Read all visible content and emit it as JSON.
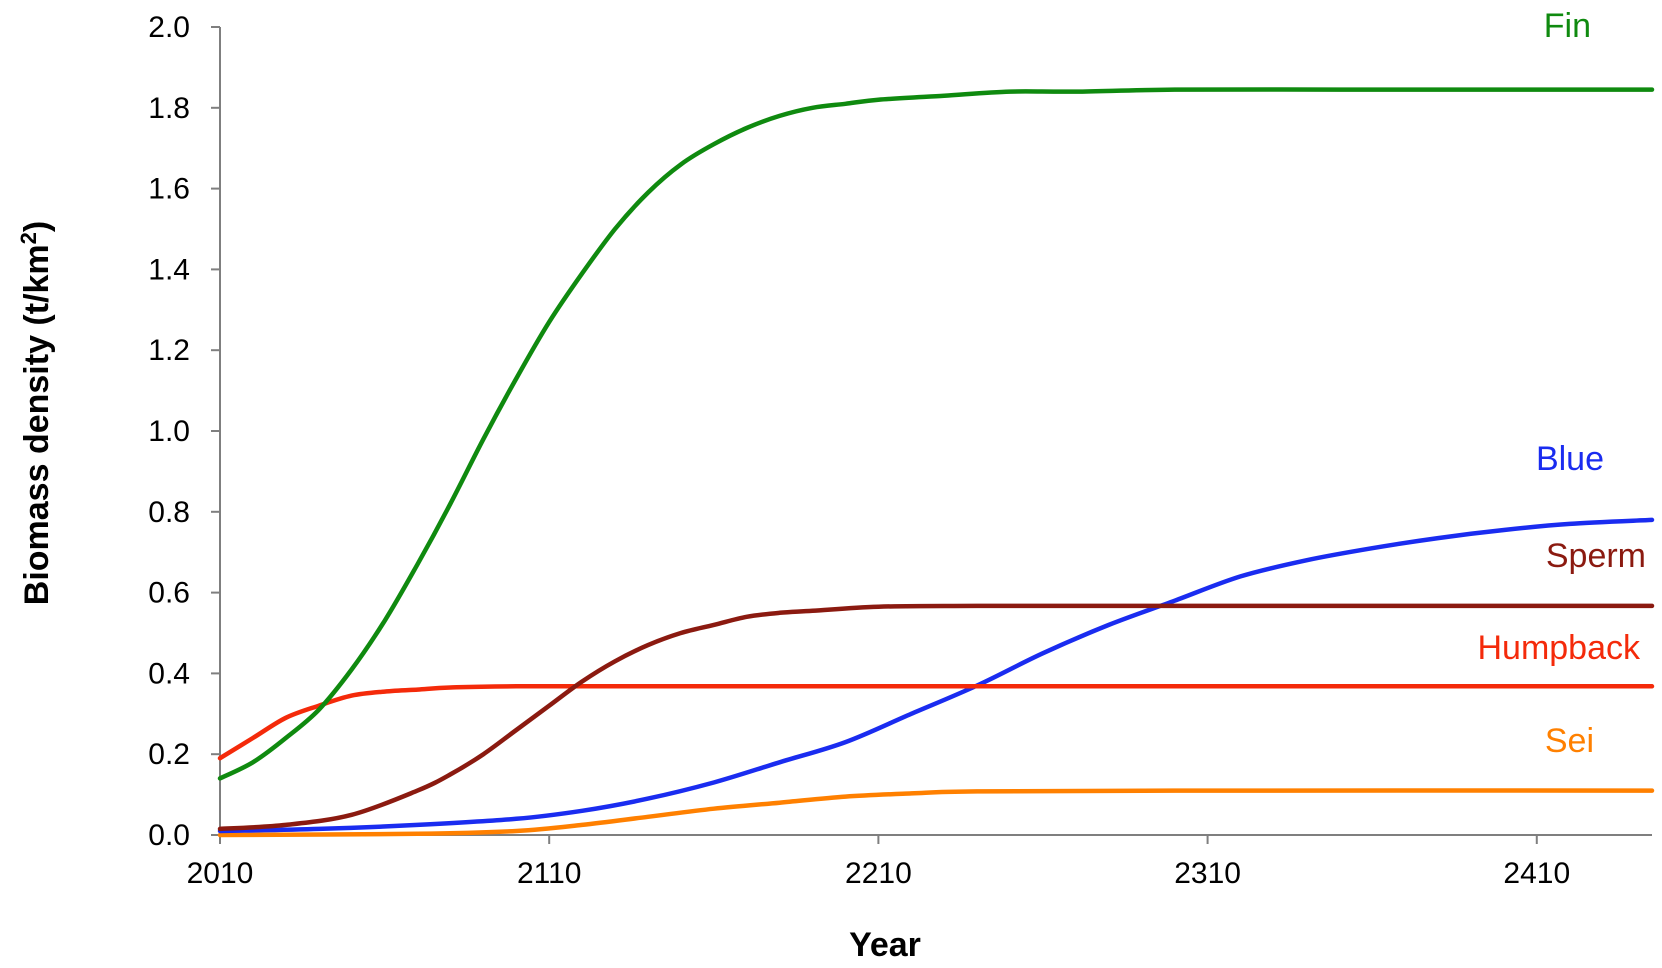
{
  "chart_data": {
    "type": "line",
    "xlabel": "Year",
    "ylabel": "Biomass density (t/km²)",
    "ylabel_main": "Biomass density (t/km",
    "ylabel_sup": "2",
    "ylabel_close": ")",
    "xlim": [
      2010,
      2445
    ],
    "ylim": [
      0,
      2.0
    ],
    "xticks": [
      "2010",
      "2110",
      "2210",
      "2310",
      "2410"
    ],
    "yticks": [
      "0.0",
      "0.2",
      "0.4",
      "0.6",
      "0.8",
      "1.0",
      "1.2",
      "1.4",
      "1.6",
      "1.8",
      "2.0"
    ],
    "grid": false,
    "legend": "labels at right end of each line",
    "series": [
      {
        "name": "Fin",
        "color": "#0f8a0f",
        "x": [
          2010,
          2020,
          2030,
          2040,
          2050,
          2060,
          2070,
          2080,
          2090,
          2100,
          2110,
          2120,
          2130,
          2140,
          2150,
          2160,
          2170,
          2180,
          2190,
          2200,
          2210,
          2230,
          2250,
          2270,
          2300,
          2350,
          2400,
          2445
        ],
        "y": [
          0.14,
          0.18,
          0.24,
          0.31,
          0.41,
          0.53,
          0.67,
          0.82,
          0.98,
          1.13,
          1.27,
          1.39,
          1.5,
          1.59,
          1.66,
          1.71,
          1.75,
          1.78,
          1.8,
          1.81,
          1.82,
          1.83,
          1.84,
          1.84,
          1.845,
          1.845,
          1.845,
          1.845
        ]
      },
      {
        "name": "Blue",
        "color": "#1a2cf0",
        "x": [
          2010,
          2040,
          2070,
          2100,
          2120,
          2140,
          2160,
          2180,
          2200,
          2220,
          2240,
          2260,
          2280,
          2300,
          2320,
          2340,
          2360,
          2380,
          2400,
          2420,
          2445
        ],
        "y": [
          0.01,
          0.015,
          0.025,
          0.04,
          0.06,
          0.09,
          0.13,
          0.18,
          0.23,
          0.3,
          0.37,
          0.45,
          0.52,
          0.58,
          0.64,
          0.68,
          0.71,
          0.735,
          0.755,
          0.77,
          0.78
        ]
      },
      {
        "name": "Sperm",
        "color": "#8b1a10",
        "x": [
          2010,
          2030,
          2050,
          2070,
          2080,
          2090,
          2100,
          2110,
          2120,
          2130,
          2140,
          2150,
          2160,
          2170,
          2180,
          2190,
          2210,
          2240,
          2300,
          2350,
          2445
        ],
        "y": [
          0.015,
          0.025,
          0.05,
          0.11,
          0.15,
          0.2,
          0.26,
          0.32,
          0.38,
          0.43,
          0.47,
          0.5,
          0.52,
          0.54,
          0.55,
          0.555,
          0.565,
          0.567,
          0.567,
          0.567,
          0.567
        ]
      },
      {
        "name": "Humpback",
        "color": "#f42a0a",
        "x": [
          2010,
          2020,
          2030,
          2040,
          2050,
          2060,
          2070,
          2080,
          2100,
          2150,
          2200,
          2300,
          2445
        ],
        "y": [
          0.19,
          0.24,
          0.29,
          0.32,
          0.345,
          0.355,
          0.36,
          0.365,
          0.368,
          0.368,
          0.368,
          0.368,
          0.368
        ]
      },
      {
        "name": "Sei",
        "color": "#ff8000",
        "x": [
          2010,
          2070,
          2100,
          2120,
          2140,
          2160,
          2180,
          2200,
          2220,
          2240,
          2300,
          2445
        ],
        "y": [
          0.0,
          0.003,
          0.01,
          0.025,
          0.045,
          0.065,
          0.08,
          0.095,
          0.103,
          0.108,
          0.11,
          0.11
        ]
      }
    ]
  }
}
